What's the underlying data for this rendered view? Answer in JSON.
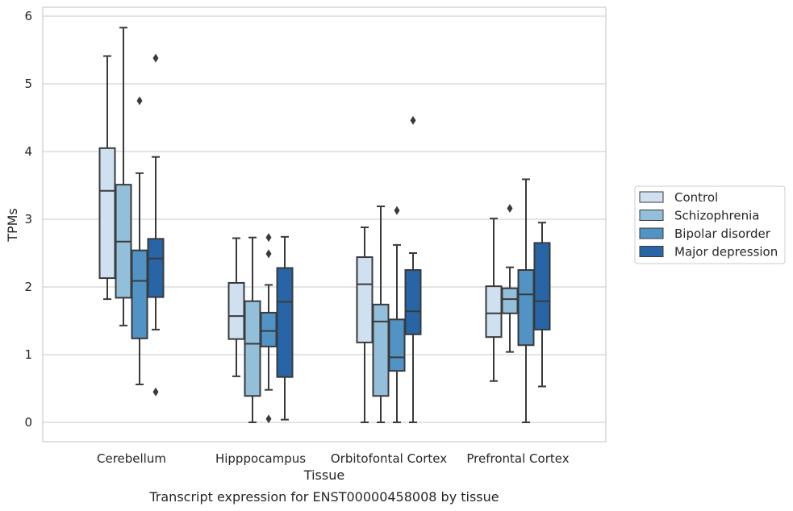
{
  "chart_data": {
    "type": "box",
    "xlabel": "Tissue",
    "ylabel": "TPMs",
    "caption": "Transcript expression for ENST00000458008 by tissue",
    "ylim": [
      -0.28,
      6.13
    ],
    "yticks": [
      "0",
      "1",
      "2",
      "3",
      "4",
      "5",
      "6"
    ],
    "grid": true,
    "legend_position": "right",
    "categories": [
      "Cerebellum",
      "Hipppocampus",
      "Orbitofontal Cortex",
      "Prefrontal Cortex"
    ],
    "series": [
      {
        "name": "Control",
        "color": "#cfe0f1",
        "boxes": [
          {
            "whisker_low": 1.82,
            "q1": 2.13,
            "median": 3.42,
            "q3": 4.05,
            "whisker_high": 5.41,
            "outliers": []
          },
          {
            "whisker_low": 0.68,
            "q1": 1.23,
            "median": 1.57,
            "q3": 2.06,
            "whisker_high": 2.72,
            "outliers": []
          },
          {
            "whisker_low": 0.0,
            "q1": 1.18,
            "median": 2.04,
            "q3": 2.44,
            "whisker_high": 2.88,
            "outliers": []
          },
          {
            "whisker_low": 0.61,
            "q1": 1.26,
            "median": 1.61,
            "q3": 2.01,
            "whisker_high": 3.01,
            "outliers": []
          }
        ]
      },
      {
        "name": "Schizophrenia",
        "color": "#93bfda",
        "boxes": [
          {
            "whisker_low": 1.43,
            "q1": 1.84,
            "median": 2.67,
            "q3": 3.51,
            "whisker_high": 5.83,
            "outliers": []
          },
          {
            "whisker_low": 0.0,
            "q1": 0.39,
            "median": 1.16,
            "q3": 1.79,
            "whisker_high": 2.73,
            "outliers": []
          },
          {
            "whisker_low": 0.0,
            "q1": 0.39,
            "median": 1.49,
            "q3": 1.74,
            "whisker_high": 3.19,
            "outliers": []
          },
          {
            "whisker_low": 1.04,
            "q1": 1.61,
            "median": 1.82,
            "q3": 1.98,
            "whisker_high": 2.29,
            "outliers": [
              3.16
            ]
          }
        ]
      },
      {
        "name": "Bipolar disorder",
        "color": "#5293c5",
        "boxes": [
          {
            "whisker_low": 0.56,
            "q1": 1.24,
            "median": 2.09,
            "q3": 2.54,
            "whisker_high": 3.68,
            "outliers": [
              4.75
            ]
          },
          {
            "whisker_low": 0.48,
            "q1": 1.12,
            "median": 1.35,
            "q3": 1.62,
            "whisker_high": 2.03,
            "outliers": [
              2.49,
              2.73,
              0.05
            ]
          },
          {
            "whisker_low": 0.0,
            "q1": 0.76,
            "median": 0.96,
            "q3": 1.52,
            "whisker_high": 2.62,
            "outliers": [
              3.13
            ]
          },
          {
            "whisker_low": 0.0,
            "q1": 1.14,
            "median": 1.89,
            "q3": 2.25,
            "whisker_high": 3.59,
            "outliers": []
          }
        ]
      },
      {
        "name": "Major depression",
        "color": "#2765a7",
        "boxes": [
          {
            "whisker_low": 1.37,
            "q1": 1.85,
            "median": 2.42,
            "q3": 2.71,
            "whisker_high": 3.92,
            "outliers": [
              5.38,
              0.45
            ]
          },
          {
            "whisker_low": 0.04,
            "q1": 0.67,
            "median": 1.78,
            "q3": 2.28,
            "whisker_high": 2.74,
            "outliers": []
          },
          {
            "whisker_low": 0.0,
            "q1": 1.3,
            "median": 1.64,
            "q3": 2.25,
            "whisker_high": 2.5,
            "outliers": [
              4.46
            ]
          },
          {
            "whisker_low": 0.53,
            "q1": 1.37,
            "median": 1.79,
            "q3": 2.65,
            "whisker_high": 2.95,
            "outliers": []
          }
        ]
      }
    ]
  }
}
